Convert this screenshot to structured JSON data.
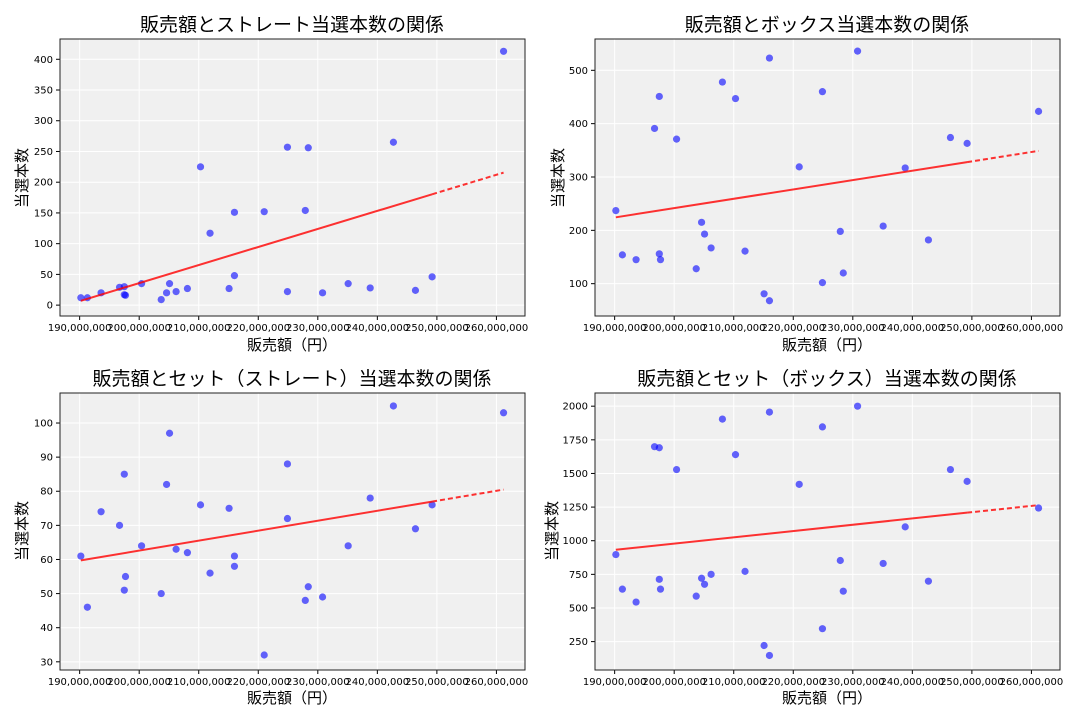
{
  "colors": {
    "point": "#0000ff",
    "trend": "#ff0000",
    "plot_bg": "#f0f0f0",
    "grid": "#ffffff"
  },
  "chart_data": [
    {
      "type": "scatter",
      "title": "販売額とストレート当選本数の関係",
      "xlabel": "販売額（円）",
      "ylabel": "当選本数",
      "xlim": [
        186700000,
        264800000
      ],
      "ylim": [
        -17.7,
        433
      ],
      "xticks": [
        190000000,
        200000000,
        210000000,
        220000000,
        230000000,
        240000000,
        250000000,
        260000000
      ],
      "xtick_labels": [
        "190,000,000",
        "200,000,000",
        "210,000,000",
        "220,000,000",
        "230,000,000",
        "240,000,000",
        "250,000,000",
        "260,000,000"
      ],
      "yticks": [
        0,
        50,
        100,
        150,
        200,
        250,
        300,
        350,
        400
      ],
      "ytick_labels": [
        "0",
        "50",
        "100",
        "150",
        "200",
        "250",
        "300",
        "350",
        "400"
      ],
      "grid": true,
      "trendline": "linear",
      "x": [
        190200000,
        191300000,
        193600000,
        196700000,
        197500000,
        197500000,
        197700000,
        200400000,
        203700000,
        204600000,
        205100000,
        206200000,
        208100000,
        210300000,
        211900000,
        215100000,
        216000000,
        216000000,
        221000000,
        224900000,
        224900000,
        227900000,
        228400000,
        230800000,
        235100000,
        238800000,
        242700000,
        246400000,
        249200000,
        261200000
      ],
      "y": [
        12,
        12,
        20,
        29,
        30,
        17,
        16,
        35,
        9,
        20,
        35,
        22,
        27,
        225,
        117,
        27,
        48,
        151,
        152,
        257,
        22,
        154,
        256,
        20,
        35,
        28,
        265,
        24,
        46,
        413
      ]
    },
    {
      "type": "scatter",
      "title": "販売額とボックス当選本数の関係",
      "xlabel": "販売額（円）",
      "ylabel": "当選本数",
      "xlim": [
        186700000,
        264800000
      ],
      "ylim": [
        39.4,
        558.7
      ],
      "xticks": [
        190000000,
        200000000,
        210000000,
        220000000,
        230000000,
        240000000,
        250000000,
        260000000
      ],
      "xtick_labels": [
        "190,000,000",
        "200,000,000",
        "210,000,000",
        "220,000,000",
        "230,000,000",
        "240,000,000",
        "250,000,000",
        "260,000,000"
      ],
      "yticks": [
        100,
        200,
        300,
        400,
        500
      ],
      "ytick_labels": [
        "100",
        "200",
        "300",
        "400",
        "500"
      ],
      "grid": true,
      "trendline": "linear",
      "x": [
        190200000,
        191300000,
        193600000,
        196700000,
        197500000,
        197500000,
        197700000,
        200400000,
        203700000,
        204600000,
        205100000,
        206200000,
        208100000,
        210300000,
        211900000,
        215100000,
        216000000,
        216000000,
        221000000,
        224900000,
        224900000,
        227900000,
        228400000,
        230800000,
        235100000,
        238800000,
        242700000,
        246400000,
        249200000,
        261200000
      ],
      "y": [
        237,
        154,
        145,
        391,
        451,
        156,
        145,
        371,
        128,
        215,
        193,
        167,
        478,
        447,
        161,
        81,
        68,
        523,
        319,
        460,
        102,
        198,
        120,
        536,
        208,
        317,
        182,
        374,
        363,
        423
      ]
    },
    {
      "type": "scatter",
      "title": "販売額とセット（ストレート）当選本数の関係",
      "xlabel": "販売額（円）",
      "ylabel": "当選本数",
      "xlim": [
        186700000,
        264800000
      ],
      "ylim": [
        27.6,
        108.8
      ],
      "xticks": [
        190000000,
        200000000,
        210000000,
        220000000,
        230000000,
        240000000,
        250000000,
        260000000
      ],
      "xtick_labels": [
        "190,000,000",
        "200,000,000",
        "210,000,000",
        "220,000,000",
        "230,000,000",
        "240,000,000",
        "250,000,000",
        "260,000,000"
      ],
      "yticks": [
        30,
        40,
        50,
        60,
        70,
        80,
        90,
        100
      ],
      "ytick_labels": [
        "30",
        "40",
        "50",
        "60",
        "70",
        "80",
        "90",
        "100"
      ],
      "grid": true,
      "trendline": "linear",
      "x": [
        190200000,
        191300000,
        193600000,
        196700000,
        197500000,
        197500000,
        197700000,
        200400000,
        203700000,
        204600000,
        205100000,
        206200000,
        208100000,
        210300000,
        211900000,
        215100000,
        216000000,
        216000000,
        221000000,
        224900000,
        224900000,
        227900000,
        228400000,
        230800000,
        235100000,
        238800000,
        242700000,
        246400000,
        249200000,
        261200000
      ],
      "y": [
        61,
        46,
        74,
        70,
        85,
        51,
        55,
        64,
        50,
        82,
        97,
        63,
        62,
        76,
        56,
        75,
        61,
        58,
        32,
        88,
        72,
        48,
        52,
        49,
        64,
        78,
        105,
        69,
        76,
        103
      ]
    },
    {
      "type": "scatter",
      "title": "販売額とセット（ボックス）当選本数の関係",
      "xlabel": "販売額（円）",
      "ylabel": "当選本数",
      "xlim": [
        186700000,
        264800000
      ],
      "ylim": [
        39,
        2098
      ],
      "xticks": [
        190000000,
        200000000,
        210000000,
        220000000,
        230000000,
        240000000,
        250000000,
        260000000
      ],
      "xtick_labels": [
        "190,000,000",
        "200,000,000",
        "210,000,000",
        "220,000,000",
        "230,000,000",
        "240,000,000",
        "250,000,000",
        "260,000,000"
      ],
      "yticks": [
        250,
        500,
        750,
        1000,
        1250,
        1500,
        1750,
        2000
      ],
      "ytick_labels": [
        "250",
        "500",
        "750",
        "1000",
        "1250",
        "1500",
        "1750",
        "2000"
      ],
      "grid": true,
      "trendline": "linear",
      "x": [
        190200000,
        191300000,
        193600000,
        196700000,
        197500000,
        197500000,
        197700000,
        200400000,
        203700000,
        204600000,
        205100000,
        206200000,
        208100000,
        210300000,
        211900000,
        215100000,
        216000000,
        216000000,
        221000000,
        224900000,
        224900000,
        227900000,
        228400000,
        230800000,
        235100000,
        238800000,
        242700000,
        246400000,
        249200000,
        261200000
      ],
      "y": [
        897,
        640,
        544,
        1699,
        1691,
        713,
        640,
        1529,
        588,
        721,
        676,
        750,
        1904,
        1640,
        772,
        221,
        147,
        1956,
        1419,
        1846,
        346,
        853,
        625,
        2000,
        831,
        1103,
        699,
        1529,
        1441,
        1243
      ]
    }
  ]
}
